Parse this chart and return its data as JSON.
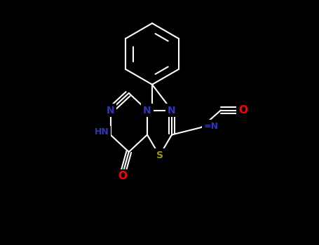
{
  "bg": "#000000",
  "bc": "#ffffff",
  "lw": 1.5,
  "Nc": "#3333bb",
  "Sc": "#999900",
  "Oc": "#ff0000",
  "figsize": [
    4.55,
    3.5
  ],
  "dpi": 100,
  "xlim": [
    -2.5,
    7.5
  ],
  "ylim": [
    -4.0,
    6.0
  ]
}
